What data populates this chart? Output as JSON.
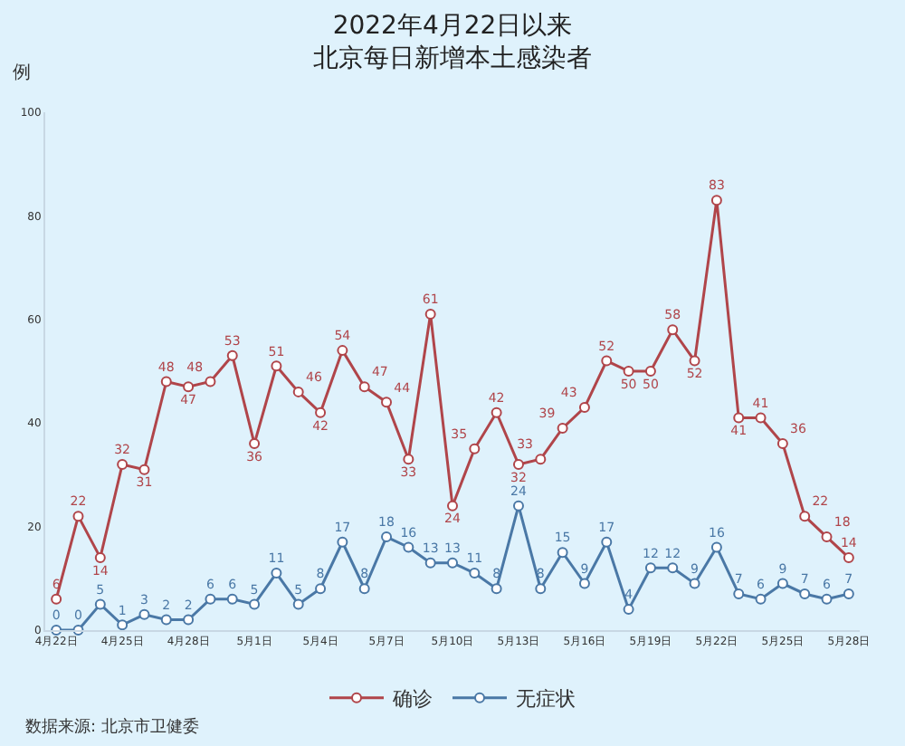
{
  "chart_data": {
    "type": "line",
    "title": "2022年4月22日以来",
    "subtitle": "北京每日新增本土感染者",
    "ylabel": "例",
    "categories": [
      "4月22日",
      null,
      null,
      "4月25日",
      null,
      null,
      "4月28日",
      null,
      null,
      "5月1日",
      null,
      null,
      "5月4日",
      null,
      null,
      "5月7日",
      null,
      null,
      "5月10日",
      null,
      null,
      "5月13日",
      null,
      null,
      "5月16日",
      null,
      null,
      "5月19日",
      null,
      null,
      "5月22日",
      null,
      null,
      "5月25日",
      null,
      null,
      "5月28日"
    ],
    "series": [
      {
        "name": "确诊",
        "color": "#b0454a",
        "values": [
          6,
          22,
          14,
          32,
          31,
          48,
          47,
          48,
          53,
          36,
          51,
          46,
          42,
          54,
          47,
          44,
          33,
          61,
          24,
          35,
          42,
          32,
          33,
          39,
          43,
          52,
          50,
          50,
          58,
          52,
          83,
          41,
          41,
          36,
          22,
          18,
          14
        ]
      },
      {
        "name": "无症状",
        "color": "#4a78a6",
        "values": [
          0,
          0,
          5,
          1,
          3,
          2,
          2,
          6,
          6,
          5,
          11,
          5,
          8,
          17,
          8,
          18,
          16,
          13,
          13,
          11,
          8,
          24,
          8,
          15,
          9,
          17,
          4,
          12,
          12,
          9,
          16,
          7,
          6,
          9,
          7,
          6,
          7
        ]
      }
    ],
    "ylim": [
      0,
      100
    ],
    "yticks": [
      0,
      20,
      40,
      60,
      80,
      100
    ],
    "data_labels": true,
    "marker": "circle",
    "line_style": "solid",
    "grid": false,
    "legend": "bottom",
    "annotations": [
      "数据来源: 北京市卫健委"
    ]
  }
}
